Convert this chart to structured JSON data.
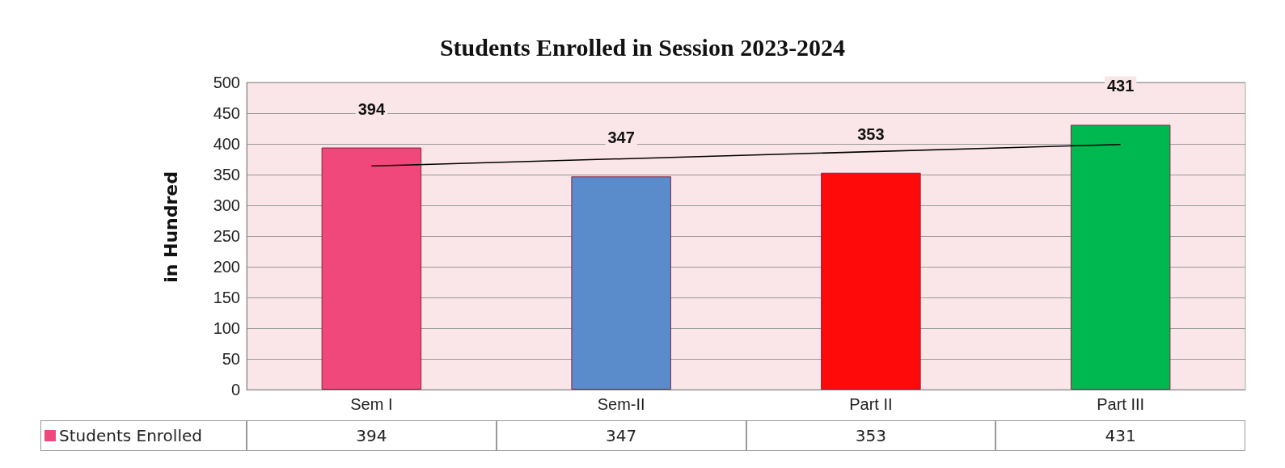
{
  "chart_data": {
    "type": "bar",
    "title": "Students Enrolled in Session 2023-2024",
    "ylabel": "in Hundred",
    "categories": [
      "Sem I",
      "Sem-II",
      "Part II",
      "Part III"
    ],
    "series": [
      {
        "name": "Students Enrolled",
        "color": "#f0487a",
        "colors": [
          "#f0487a",
          "#5a8ccc",
          "#ff0a0a",
          "#00b850"
        ],
        "values": [
          394,
          347,
          353,
          431
        ],
        "value_labels": [
          "394",
          "347",
          "353",
          "431"
        ]
      },
      {
        "type": "line",
        "color": "#000000",
        "x": [
          "Sem I",
          "Part III"
        ],
        "values": [
          364,
          399
        ]
      }
    ],
    "ylim": [
      0,
      500
    ],
    "yticks": [
      0,
      50,
      100,
      150,
      200,
      250,
      300,
      350,
      400,
      450,
      500
    ],
    "grid": "y",
    "legend": "bottom"
  }
}
